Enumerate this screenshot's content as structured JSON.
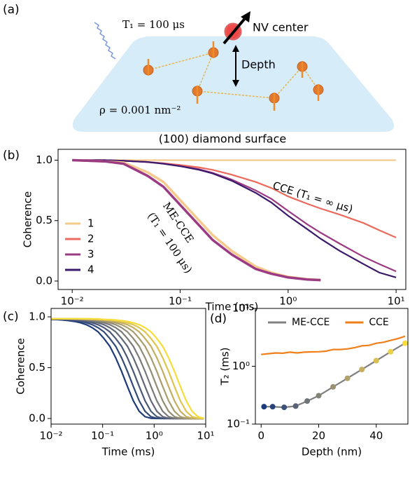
{
  "diagram": {
    "label": "(a)",
    "t1": "T₁ = 100 μs",
    "nv": "NV center",
    "depth": "Depth",
    "rho": "ρ = 0.001 nm⁻²",
    "surface": "(100) diamond surface"
  },
  "chart_data": [
    {
      "type": "line",
      "panel_label": "(b)",
      "x_label": "Time (ms)",
      "y_label": "Coherence",
      "x_scale": "log",
      "legend": "center left",
      "xlim": [
        0.0074,
        12.3
      ],
      "xticks": [
        {
          "value": 0.01,
          "label": "10⁻²"
        },
        {
          "value": 0.1,
          "label": "10⁻¹"
        },
        {
          "value": 1,
          "label": "10⁰"
        },
        {
          "value": 10,
          "label": "10¹"
        }
      ],
      "ylim": [
        -0.07,
        1.09
      ],
      "yticks": [
        {
          "value": 0,
          "label": "0.0"
        },
        0.5,
        {
          "value": 1,
          "label": "1.0"
        }
      ],
      "x": [
        0.01,
        0.02,
        0.03,
        0.05,
        0.07,
        0.1,
        0.15,
        0.2,
        0.3,
        0.5,
        0.7,
        1,
        1.5,
        2,
        3,
        5,
        7,
        10
      ],
      "series": [
        {
          "name": "1",
          "color": "#f6c98c",
          "values": [
            1,
            1,
            1,
            1,
            1,
            1,
            1,
            1,
            1,
            1,
            1,
            1,
            1,
            1,
            1,
            1,
            1,
            1
          ]
        },
        {
          "name": "2",
          "color": "#ec6a5c",
          "values": [
            1,
            1,
            0.995,
            0.985,
            0.975,
            0.96,
            0.94,
            0.92,
            0.88,
            0.82,
            0.77,
            0.7,
            0.64,
            0.6,
            0.55,
            0.48,
            0.42,
            0.36
          ]
        },
        {
          "name": "3",
          "color": "#9b3b84",
          "values": [
            1,
            1,
            0.995,
            0.985,
            0.972,
            0.952,
            0.925,
            0.895,
            0.84,
            0.75,
            0.68,
            0.58,
            0.47,
            0.4,
            0.31,
            0.2,
            0.14,
            0.08
          ]
        },
        {
          "name": "4",
          "color": "#3b1a6b",
          "values": [
            1,
            1,
            0.995,
            0.985,
            0.97,
            0.95,
            0.92,
            0.89,
            0.83,
            0.73,
            0.65,
            0.54,
            0.43,
            0.35,
            0.25,
            0.14,
            0.07,
            0.03
          ]
        },
        {
          "color": "#f6c98c",
          "values": [
            1,
            0.99,
            0.98,
            0.9,
            0.82,
            0.67,
            0.5,
            0.38,
            0.25,
            0.12,
            0.07,
            0.035,
            0.015,
            0.01,
            null,
            null,
            null,
            null
          ]
        },
        {
          "color": "#9b3b84",
          "values": [
            1,
            0.99,
            0.97,
            0.87,
            0.78,
            0.63,
            0.46,
            0.34,
            0.22,
            0.1,
            0.06,
            0.03,
            0.013,
            0.008,
            null,
            null,
            null,
            null
          ]
        }
      ],
      "annotations": [
        {
          "text": "CCE (T₁ = ∞ μs)"
        },
        {
          "text": "ME-CCE"
        },
        {
          "text": "(T₁ = 100 μs)"
        }
      ]
    },
    {
      "type": "line",
      "panel_label": "(c)",
      "x_label": "Time (ms)",
      "y_label": "Coherence",
      "x_scale": "log",
      "xlim": [
        0.01,
        10
      ],
      "xticks": [
        {
          "value": 0.01,
          "label": "10⁻²"
        },
        {
          "value": 0.1,
          "label": "10⁻¹"
        },
        {
          "value": 1,
          "label": "10⁰"
        },
        {
          "value": 10,
          "label": "10¹"
        }
      ],
      "ylim": [
        -0.055,
        1.083
      ],
      "yticks": [
        {
          "value": 0,
          "label": "0.0"
        },
        0.5,
        {
          "value": 1,
          "label": "1.0"
        }
      ],
      "x": [
        0.01,
        0.013,
        0.0169,
        0.02197,
        0.02856,
        0.03713,
        0.04827,
        0.06275,
        0.08157,
        0.106,
        0.1379,
        0.1792,
        0.233,
        0.3029,
        0.3937,
        0.5119,
        0.6654,
        0.865,
        1.1246,
        1.4619,
        1.9005,
        2.4706,
        3.2118,
        4.1754,
        5.428,
        7.0564,
        9.1733
      ],
      "series": [
        {
          "color": "#1d3b7a",
          "values": [
            0.975,
            0.973,
            0.969,
            0.963,
            0.955,
            0.942,
            0.923,
            0.894,
            0.853,
            0.788,
            0.711,
            0.599,
            0.464,
            0.316,
            0.175,
            0.071,
            0.018,
            0.002,
            0,
            0,
            0,
            0,
            0,
            0,
            0,
            0,
            0
          ]
        },
        {
          "color": "#334a78",
          "values": [
            0.98,
            0.975,
            0.973,
            0.969,
            0.963,
            0.955,
            0.942,
            0.923,
            0.894,
            0.853,
            0.788,
            0.711,
            0.599,
            0.464,
            0.316,
            0.175,
            0.071,
            0.018,
            0.002,
            0,
            0,
            0,
            0,
            0,
            0,
            0,
            0
          ]
        },
        {
          "color": "#4a5878",
          "values": [
            0.98,
            0.98,
            0.975,
            0.973,
            0.969,
            0.963,
            0.955,
            0.942,
            0.923,
            0.894,
            0.853,
            0.788,
            0.711,
            0.599,
            0.464,
            0.316,
            0.175,
            0.071,
            0.018,
            0.002,
            0,
            0,
            0,
            0,
            0,
            0,
            0
          ]
        },
        {
          "color": "#616877",
          "values": [
            0.98,
            0.98,
            0.98,
            0.975,
            0.973,
            0.969,
            0.963,
            0.955,
            0.942,
            0.923,
            0.894,
            0.853,
            0.788,
            0.711,
            0.599,
            0.464,
            0.316,
            0.175,
            0.071,
            0.018,
            0.002,
            0,
            0,
            0,
            0,
            0,
            0
          ]
        },
        {
          "color": "#7a7a78",
          "values": [
            0.98,
            0.98,
            0.98,
            0.98,
            0.975,
            0.973,
            0.969,
            0.963,
            0.955,
            0.942,
            0.923,
            0.894,
            0.853,
            0.788,
            0.711,
            0.599,
            0.464,
            0.316,
            0.175,
            0.071,
            0.018,
            0.002,
            0,
            0,
            0,
            0,
            0
          ]
        },
        {
          "color": "#928c74",
          "values": [
            0.98,
            0.98,
            0.98,
            0.98,
            0.98,
            0.975,
            0.973,
            0.969,
            0.963,
            0.955,
            0.942,
            0.923,
            0.894,
            0.853,
            0.788,
            0.711,
            0.599,
            0.464,
            0.316,
            0.175,
            0.071,
            0.018,
            0.002,
            0,
            0,
            0,
            0
          ]
        },
        {
          "color": "#aa9d6c",
          "values": [
            0.98,
            0.98,
            0.98,
            0.98,
            0.98,
            0.98,
            0.975,
            0.973,
            0.969,
            0.963,
            0.955,
            0.942,
            0.923,
            0.894,
            0.853,
            0.788,
            0.711,
            0.599,
            0.464,
            0.316,
            0.175,
            0.071,
            0.018,
            0.002,
            0,
            0,
            0
          ]
        },
        {
          "color": "#c4ae5f",
          "values": [
            0.98,
            0.98,
            0.98,
            0.98,
            0.98,
            0.98,
            0.98,
            0.975,
            0.973,
            0.969,
            0.963,
            0.955,
            0.942,
            0.923,
            0.894,
            0.853,
            0.788,
            0.711,
            0.599,
            0.464,
            0.316,
            0.175,
            0.071,
            0.018,
            0.002,
            0,
            0
          ]
        },
        {
          "color": "#dfc44e",
          "values": [
            0.98,
            0.98,
            0.98,
            0.98,
            0.98,
            0.98,
            0.98,
            0.98,
            0.975,
            0.973,
            0.969,
            0.963,
            0.955,
            0.942,
            0.923,
            0.894,
            0.853,
            0.788,
            0.711,
            0.599,
            0.464,
            0.316,
            0.175,
            0.071,
            0.018,
            0.002,
            0
          ]
        },
        {
          "color": "#f7dc3a",
          "values": [
            0.98,
            0.98,
            0.98,
            0.98,
            0.98,
            0.98,
            0.98,
            0.98,
            0.98,
            0.975,
            0.973,
            0.969,
            0.963,
            0.955,
            0.942,
            0.923,
            0.894,
            0.853,
            0.788,
            0.711,
            0.599,
            0.464,
            0.316,
            0.175,
            0.071,
            0.018,
            0.002
          ]
        }
      ]
    },
    {
      "type": "line",
      "panel_label": "(d)",
      "x_label": "Depth (nm)",
      "y_label": "T₂ (ms)",
      "y_scale": "log",
      "legend": "upper center",
      "xlim": [
        -2,
        51
      ],
      "xticks": [
        0,
        20,
        40
      ],
      "ylim": [
        0.1,
        10
      ],
      "yticks": [
        {
          "value": 0.1,
          "label": "10⁻¹"
        },
        {
          "value": 1,
          "label": "10⁰"
        },
        {
          "value": 10,
          "label": "10¹"
        }
      ],
      "series": [
        {
          "name": "ME-CCE",
          "color": "#808080",
          "x": [
            1,
            4,
            8,
            12,
            16,
            20,
            25,
            30,
            35,
            40,
            45,
            50
          ],
          "values": [
            0.2,
            0.2,
            0.195,
            0.205,
            0.25,
            0.31,
            0.44,
            0.62,
            0.88,
            1.25,
            1.78,
            2.5
          ],
          "marker_colors": [
            "#1d3b7a",
            "#2a4478",
            "#3d5078",
            "#586377",
            "#6f7478",
            "#838477",
            "#9a9272",
            "#b0a26a",
            "#c4ae5f",
            "#d9be52",
            "#ecd045",
            "#f7dc3a"
          ]
        },
        {
          "name": "CCE",
          "color": "#f07f1a",
          "x": [
            0,
            2.5,
            5,
            7.5,
            10,
            12.5,
            15,
            17.5,
            20,
            22.5,
            25,
            27.5,
            30,
            32.5,
            35,
            37.5,
            40,
            42.5,
            45,
            47.5,
            50
          ],
          "values": [
            1.6,
            1.65,
            1.7,
            1.68,
            1.75,
            1.7,
            1.75,
            1.77,
            1.78,
            1.82,
            1.95,
            1.95,
            2.0,
            2.1,
            2.25,
            2.3,
            2.5,
            2.6,
            2.8,
            3.0,
            3.3
          ]
        }
      ]
    }
  ]
}
